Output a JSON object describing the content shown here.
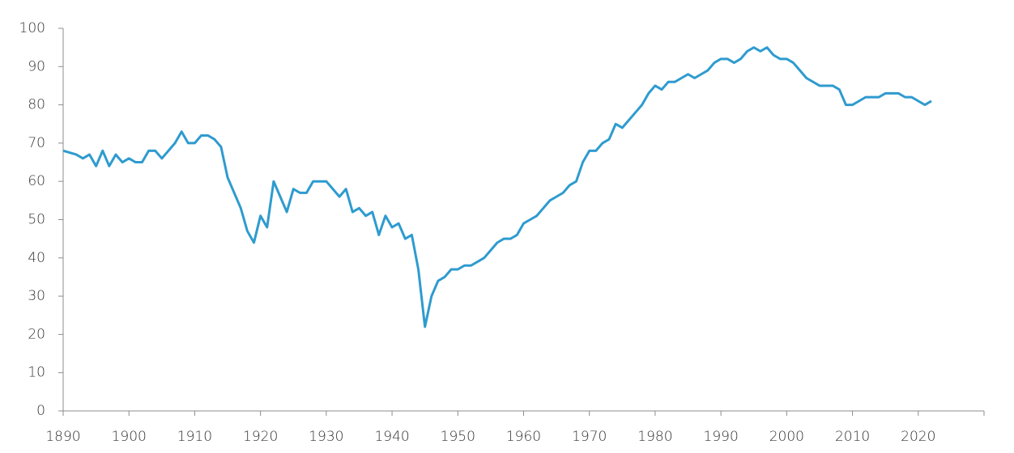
{
  "chart_data": {
    "type": "line",
    "x": [
      1890,
      1891,
      1892,
      1893,
      1894,
      1895,
      1896,
      1897,
      1898,
      1899,
      1900,
      1901,
      1902,
      1903,
      1904,
      1905,
      1906,
      1907,
      1908,
      1909,
      1910,
      1911,
      1912,
      1913,
      1914,
      1915,
      1916,
      1917,
      1918,
      1919,
      1920,
      1921,
      1922,
      1923,
      1924,
      1925,
      1926,
      1927,
      1928,
      1929,
      1930,
      1931,
      1932,
      1933,
      1934,
      1935,
      1936,
      1937,
      1938,
      1939,
      1940,
      1941,
      1942,
      1943,
      1944,
      1945,
      1946,
      1947,
      1948,
      1949,
      1950,
      1951,
      1952,
      1953,
      1954,
      1955,
      1956,
      1957,
      1958,
      1959,
      1960,
      1961,
      1962,
      1963,
      1964,
      1965,
      1966,
      1967,
      1968,
      1969,
      1970,
      1971,
      1972,
      1973,
      1974,
      1975,
      1976,
      1977,
      1978,
      1979,
      1980,
      1981,
      1982,
      1983,
      1984,
      1985,
      1986,
      1987,
      1988,
      1989,
      1990,
      1991,
      1992,
      1993,
      1994,
      1995,
      1996,
      1997,
      1998,
      1999,
      2000,
      2001,
      2002,
      2003,
      2004,
      2005,
      2006,
      2007,
      2008,
      2009,
      2010,
      2011,
      2012,
      2013,
      2014,
      2015,
      2016,
      2017,
      2018,
      2019,
      2020,
      2021,
      2022
    ],
    "series": [
      {
        "color": "#2e9bcf",
        "values": [
          68,
          67.5,
          67,
          66,
          67,
          64,
          68,
          64,
          67,
          65,
          66,
          65,
          65,
          68,
          68,
          66,
          68,
          70,
          73,
          70,
          70,
          72,
          72,
          71,
          69,
          61,
          57,
          53,
          47,
          44,
          51,
          48,
          60,
          56,
          52,
          58,
          57,
          57,
          60,
          60,
          60,
          58,
          56,
          58,
          52,
          53,
          51,
          52,
          46,
          51,
          48,
          49,
          45,
          46,
          37,
          22,
          30,
          34,
          35,
          37,
          37,
          38,
          38,
          39,
          40,
          42,
          44,
          45,
          45,
          46,
          49,
          50,
          51,
          53,
          55,
          56,
          57,
          59,
          60,
          65,
          68,
          68,
          70,
          71,
          75,
          74,
          76,
          78,
          80,
          83,
          85,
          84,
          86,
          86,
          87,
          88,
          87,
          88,
          89,
          91,
          92,
          92,
          91,
          92,
          94,
          95,
          94,
          95,
          93,
          92,
          92,
          91,
          89,
          87,
          86,
          85,
          85,
          85,
          84,
          80,
          80,
          81,
          82,
          82,
          82,
          83,
          83,
          83,
          82,
          82,
          81,
          80,
          81
        ]
      }
    ],
    "xlim": [
      1890,
      2030
    ],
    "xticks": [
      1890,
      1900,
      1910,
      1920,
      1930,
      1940,
      1950,
      1960,
      1970,
      1980,
      1990,
      2000,
      2010,
      2020
    ],
    "ylim": [
      0,
      100
    ],
    "yticks": [
      0,
      10,
      20,
      30,
      40,
      50,
      60,
      70,
      80,
      90,
      100
    ]
  }
}
